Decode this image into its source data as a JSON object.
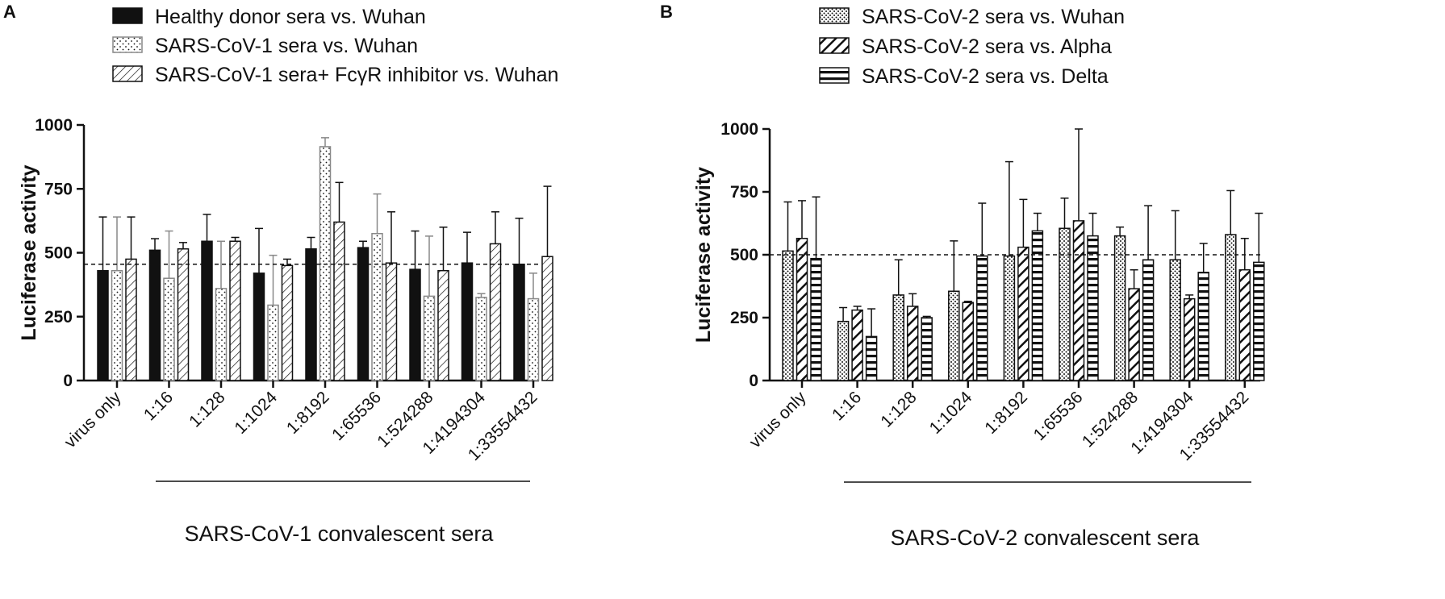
{
  "colors": {
    "ink": "#111111",
    "grey": "#888888",
    "white": "#ffffff"
  },
  "chart_data": [
    {
      "panel": "A",
      "type": "bar",
      "title": "",
      "ylabel": "Luciferase activity",
      "xlabel": "",
      "group_label": "SARS-CoV-1 convalescent sera",
      "group_start_category": 1,
      "ylim": [
        0,
        1000
      ],
      "yticks": [
        0,
        250,
        500,
        750,
        1000
      ],
      "reference_line": 455,
      "legend_position": "top",
      "categories": [
        "virus only",
        "1:16",
        "1:128",
        "1:1024",
        "1:8192",
        "1:65536",
        "1:524288",
        "1:4194304",
        "1:33554432"
      ],
      "series": [
        {
          "name": "Healthy donor sera vs. Wuhan",
          "pattern": "solid",
          "values": [
            430,
            510,
            545,
            420,
            515,
            520,
            435,
            460,
            455
          ],
          "error_up": [
            640,
            555,
            650,
            595,
            560,
            545,
            585,
            580,
            635
          ]
        },
        {
          "name": "SARS-CoV-1 sera vs. Wuhan",
          "pattern": "dots",
          "values": [
            430,
            400,
            360,
            295,
            915,
            575,
            330,
            325,
            320
          ],
          "error_up": [
            640,
            585,
            545,
            490,
            950,
            730,
            565,
            340,
            420
          ]
        },
        {
          "name": "SARS-CoV-1 sera+ FcγR inhibitor vs. Wuhan",
          "pattern": "fine-diagonal",
          "values": [
            475,
            515,
            545,
            450,
            620,
            460,
            430,
            535,
            485
          ],
          "error_up": [
            640,
            540,
            560,
            475,
            775,
            660,
            600,
            660,
            760
          ]
        }
      ]
    },
    {
      "panel": "B",
      "type": "bar",
      "title": "",
      "ylabel": "Luciferase activity",
      "xlabel": "",
      "group_label": "SARS-CoV-2 convalescent sera",
      "group_start_category": 1,
      "ylim": [
        0,
        1000
      ],
      "yticks": [
        0,
        250,
        500,
        750,
        1000
      ],
      "reference_line": 500,
      "legend_position": "top",
      "categories": [
        "virus only",
        "1:16",
        "1:128",
        "1:1024",
        "1:8192",
        "1:65536",
        "1:524288",
        "1:4194304",
        "1:33554432"
      ],
      "series": [
        {
          "name": "SARS-CoV-2 sera vs. Wuhan",
          "pattern": "dense-dots",
          "values": [
            515,
            235,
            340,
            355,
            495,
            605,
            575,
            480,
            580
          ],
          "error_up": [
            710,
            290,
            480,
            555,
            870,
            725,
            610,
            675,
            755
          ]
        },
        {
          "name": "SARS-CoV-2 sera vs. Alpha",
          "pattern": "bold-diagonal",
          "values": [
            565,
            280,
            295,
            310,
            530,
            635,
            365,
            325,
            440
          ],
          "error_up": [
            715,
            295,
            345,
            315,
            720,
            1000,
            440,
            340,
            565
          ]
        },
        {
          "name": "SARS-CoV-2 sera vs. Delta",
          "pattern": "horizontal",
          "values": [
            485,
            175,
            250,
            495,
            595,
            575,
            480,
            430,
            470
          ],
          "error_up": [
            730,
            285,
            255,
            705,
            665,
            665,
            695,
            545,
            665
          ]
        }
      ]
    }
  ]
}
